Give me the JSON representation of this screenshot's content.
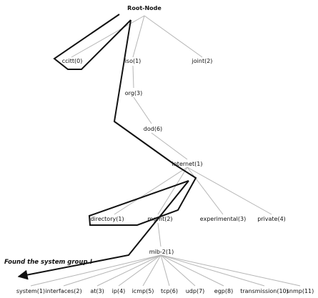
{
  "diagram": {
    "nodes": {
      "root": "Root-Node",
      "ccitt": "ccitt(0)",
      "iso": "iso(1)",
      "joint": "joint(2)",
      "org": "org(3)",
      "dod": "dod(6)",
      "internet": "internet(1)",
      "directory": "directory(1)",
      "mgmt": "mgmt(2)",
      "experimental": "experimental(3)",
      "private": "private(4)",
      "mib2": "mib-2(1)",
      "system": "system(1)",
      "interfaces": "interfaces(2)",
      "at": "at(3)",
      "ip": "ip(4)",
      "icmp": "icmp(5)",
      "tcp": "tcp(6)",
      "udp": "udp(7)",
      "egp": "egp(8)",
      "transmission": "transmission(10)",
      "snmp": "snmp(11)"
    },
    "note": "Found the system group !",
    "colors": {
      "edge": "#b5b5b5",
      "path": "#111111",
      "text": "#111111"
    }
  }
}
